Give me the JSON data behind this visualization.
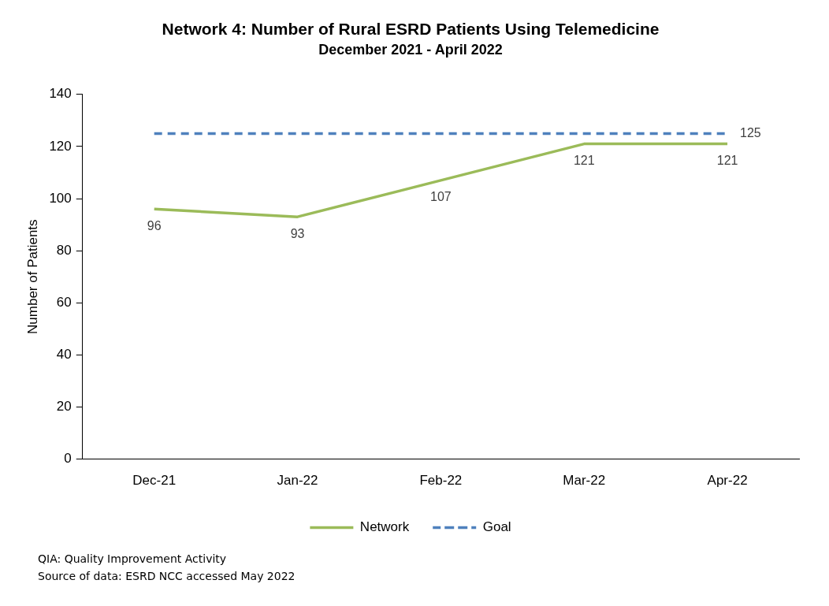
{
  "chart_data": {
    "type": "line",
    "title": "Network 4: Number of Rural ESRD Patients Using Telemedicine",
    "subtitle": "December 2021 - April 2022",
    "ylabel": "Number of Patients",
    "categories": [
      "Dec-21",
      "Jan-22",
      "Feb-22",
      "Mar-22",
      "Apr-22"
    ],
    "series": [
      {
        "name": "Network",
        "color": "#9bbb59",
        "values": [
          96,
          93,
          107,
          121,
          121
        ],
        "line_style": "solid",
        "value_labels": [
          "96",
          "93",
          "107",
          "121",
          "121"
        ]
      },
      {
        "name": "Goal",
        "color": "#4f81bd",
        "values": [
          125,
          125,
          125,
          125,
          125
        ],
        "line_style": "dashed",
        "value_labels": [
          null,
          null,
          null,
          null,
          "125"
        ]
      }
    ],
    "ylim": [
      0,
      140
    ],
    "yticks": [
      0,
      20,
      40,
      60,
      80,
      100,
      120,
      140
    ],
    "grid": false,
    "legend": "bottom",
    "marker": "none",
    "annotations": [
      "QIA:  Quality Improvement Activity",
      "Source of data:  ESRD NCC accessed May 2022"
    ]
  }
}
